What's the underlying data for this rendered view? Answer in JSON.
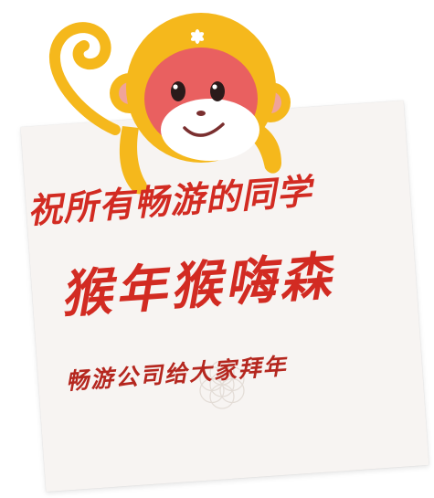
{
  "greeting": {
    "line1": "祝所有畅游的同学",
    "line2": "猴年猴嗨森",
    "line3": "畅游公司给大家拜年"
  },
  "icons": {
    "mascot": "monkey-mascot-icon",
    "forehead": "flower-icon",
    "watermark": "flower-of-life-icon"
  },
  "colors": {
    "text_red": "#d22b22",
    "monkey_yellow": "#f5b81c",
    "monkey_face": "#e96060",
    "paper": "#f7f4f2"
  }
}
